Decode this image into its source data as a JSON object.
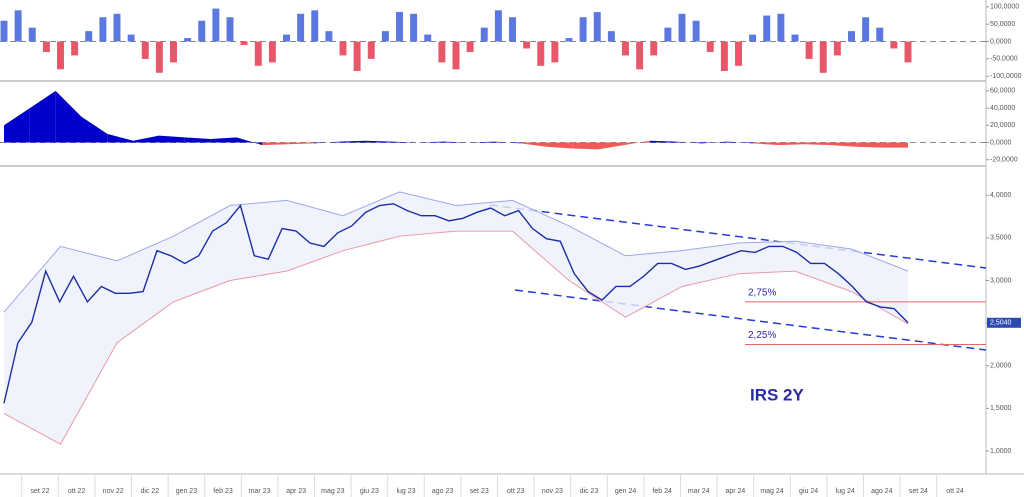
{
  "chart_data": [
    {
      "type": "bar",
      "values": [
        60,
        90,
        40,
        -30,
        -80,
        -40,
        30,
        70,
        80,
        20,
        -50,
        -90,
        -60,
        10,
        60,
        95,
        70,
        -10,
        -70,
        -60,
        20,
        80,
        90,
        30,
        -40,
        -85,
        -50,
        30,
        85,
        80,
        20,
        -60,
        -80,
        -30,
        40,
        90,
        70,
        -20,
        -70,
        -60,
        10,
        70,
        85,
        30,
        -40,
        -80,
        -40,
        40,
        80,
        60,
        -30,
        -85,
        -70,
        20,
        75,
        80,
        20,
        -50,
        -90,
        -40,
        30,
        70,
        40,
        -20,
        -60
      ],
      "ylim": [
        -108,
        114
      ],
      "yticks": [
        {
          "value": 100,
          "label": "100,0000"
        },
        {
          "value": 50,
          "label": "50,0000"
        },
        {
          "value": 0,
          "label": "0,0000"
        },
        {
          "value": -50,
          "label": "-50,0000"
        },
        {
          "value": -100,
          "label": "-100,0000"
        }
      ],
      "positive_color": "#5a78e0",
      "negative_color": "#e8566a"
    },
    {
      "type": "area",
      "values": [
        20,
        40,
        60,
        30,
        10,
        2,
        8,
        6,
        4,
        6,
        -3,
        -2,
        -1,
        1,
        2,
        1,
        0,
        1,
        0,
        1,
        -1,
        -5,
        -7,
        -8,
        -3,
        2,
        1,
        -1,
        1,
        -1,
        -3,
        -2,
        -3,
        -5,
        -6,
        -6
      ],
      "ylim": [
        -25,
        68
      ],
      "yticks": [
        {
          "value": 60,
          "label": "60,0000"
        },
        {
          "value": 40,
          "label": "40,0000"
        },
        {
          "value": 20,
          "label": "20,0000"
        },
        {
          "value": 0,
          "label": "0,0000"
        },
        {
          "value": -20,
          "label": "-20,0000"
        }
      ],
      "positive_color": "#0000cc",
      "negative_color": "#f25a5a"
    },
    {
      "type": "line",
      "title": "IRS 2Y",
      "categories": [
        "set 22",
        "ott 22",
        "nov 22",
        "dic 22",
        "gen 23",
        "feb 23",
        "mar 23",
        "apr 23",
        "mag 23",
        "giu 23",
        "lug 23",
        "ago 23",
        "set 23",
        "ott 23",
        "nov 23",
        "dic 23",
        "gen 24",
        "feb 24",
        "mar 24",
        "apr 24",
        "mag 24",
        "giu 24",
        "lug 24",
        "ago 24",
        "set 24",
        "ott 24"
      ],
      "price": {
        "color": "#1a2fa0",
        "values": [
          1.56,
          2.27,
          2.51,
          3.11,
          2.75,
          3.05,
          2.75,
          2.93,
          2.85,
          2.85,
          2.87,
          3.35,
          3.29,
          3.2,
          3.29,
          3.58,
          3.68,
          3.88,
          3.29,
          3.25,
          3.61,
          3.58,
          3.44,
          3.4,
          3.56,
          3.64,
          3.8,
          3.88,
          3.9,
          3.82,
          3.76,
          3.76,
          3.7,
          3.73,
          3.8,
          3.85,
          3.76,
          3.82,
          3.61,
          3.49,
          3.46,
          3.08,
          2.87,
          2.77,
          2.93,
          2.93,
          3.05,
          3.2,
          3.2,
          3.13,
          3.17,
          3.23,
          3.29,
          3.35,
          3.33,
          3.4,
          3.4,
          3.33,
          3.2,
          3.2,
          3.08,
          2.93,
          2.75,
          2.69,
          2.67,
          2.504
        ]
      },
      "last_value_label": "2,5040",
      "upper_band": {
        "color": "#9aa8e8",
        "values": [
          2.63,
          3.4,
          3.23,
          3.52,
          3.88,
          3.94,
          3.76,
          4.04,
          3.88,
          3.94,
          3.64,
          3.29,
          3.35,
          3.44,
          3.46,
          3.37,
          3.11
        ]
      },
      "lower_band": {
        "color": "#e79aa8",
        "values": [
          1.44,
          1.08,
          2.27,
          2.75,
          3.0,
          3.11,
          3.35,
          3.52,
          3.58,
          3.58,
          3.0,
          2.57,
          2.93,
          3.08,
          3.11,
          2.87,
          2.49
        ]
      },
      "levels": [
        {
          "value": 2.75,
          "label": "2,75%"
        },
        {
          "value": 2.25,
          "label": "2,25%"
        }
      ],
      "ylim": [
        0.73,
        4.32
      ],
      "yticks": [
        {
          "value": 4,
          "label": "4,0000"
        },
        {
          "value": 3.5,
          "label": "3,5000"
        },
        {
          "value": 3,
          "label": "3,0000"
        },
        {
          "value": 2.5,
          "label": "2,5000"
        },
        {
          "value": 2,
          "label": "2,0000"
        },
        {
          "value": 1.5,
          "label": "1,5000"
        },
        {
          "value": 1,
          "label": "1,0000"
        }
      ]
    }
  ]
}
